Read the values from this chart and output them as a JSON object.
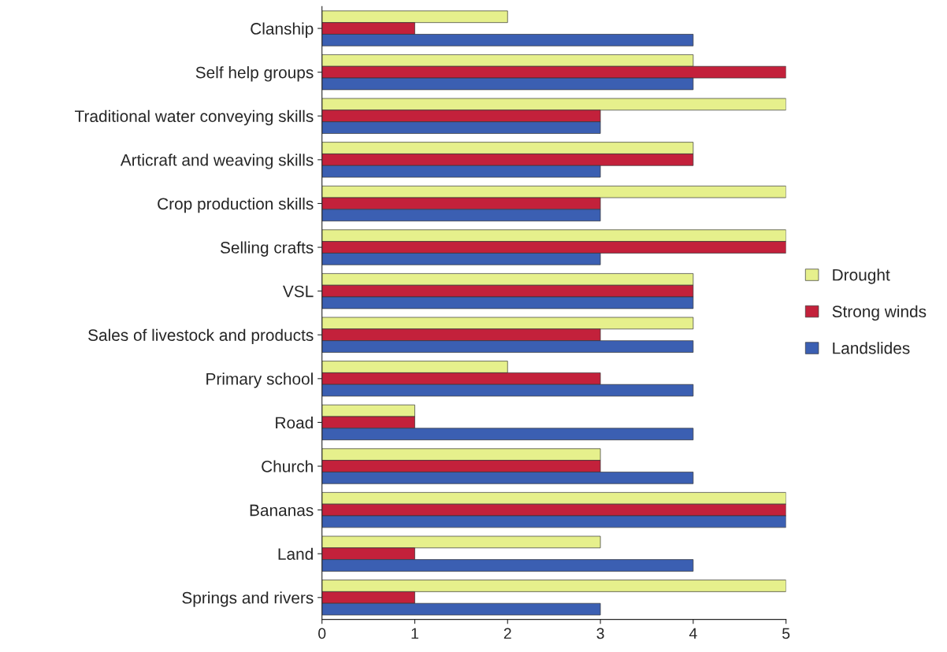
{
  "chart_data": {
    "type": "bar",
    "orientation": "horizontal",
    "categories": [
      "Clanship",
      "Self help groups",
      "Traditional water conveying skills",
      "Articraft and weaving skills",
      "Crop production skills",
      "Selling crafts",
      "VSL",
      "Sales of livestock and products",
      "Primary school",
      "Road",
      "Church",
      "Bananas",
      "Land",
      "Springs and rivers"
    ],
    "series": [
      {
        "name": "Drought",
        "color": "#e6f08c",
        "values": [
          2,
          4,
          5,
          4,
          5,
          5,
          4,
          4,
          2,
          1,
          3,
          5,
          3,
          5
        ]
      },
      {
        "name": "Strong winds",
        "color": "#c3213b",
        "values": [
          1,
          5,
          3,
          4,
          3,
          5,
          4,
          3,
          3,
          1,
          3,
          5,
          1,
          1
        ]
      },
      {
        "name": "Landslides",
        "color": "#3b5fb2",
        "values": [
          4,
          4,
          3,
          3,
          3,
          3,
          4,
          4,
          4,
          4,
          4,
          5,
          4,
          3
        ]
      }
    ],
    "xlim": [
      0,
      5
    ],
    "xticks": [
      0,
      1,
      2,
      3,
      4,
      5
    ],
    "grid": false,
    "legend": "right"
  }
}
